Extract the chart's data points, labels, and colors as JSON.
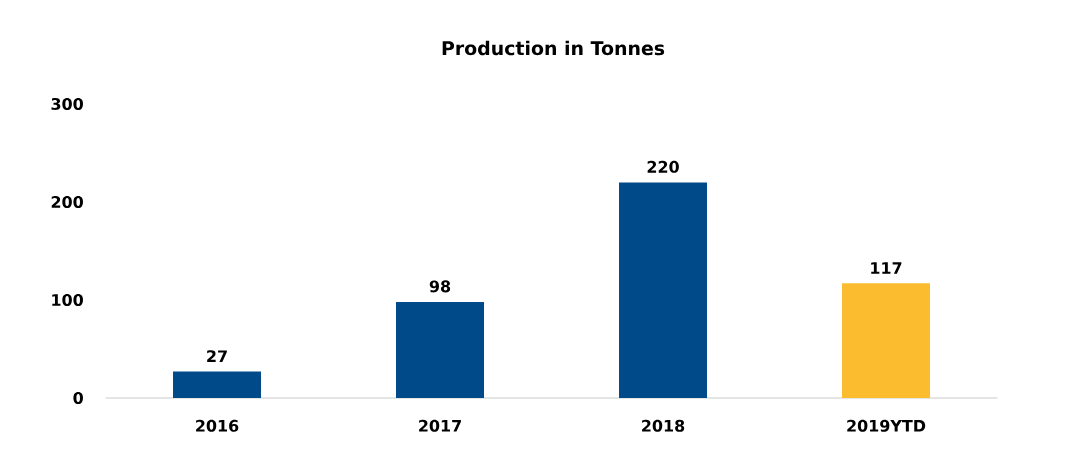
{
  "chart_data": {
    "type": "bar",
    "title": "Production in Tonnes",
    "categories": [
      "2016",
      "2017",
      "2018",
      "2019YTD"
    ],
    "values": [
      27,
      98,
      220,
      117
    ],
    "colors": [
      "#004a8a",
      "#004a8a",
      "#004a8a",
      "#fbbc30"
    ],
    "ylim": [
      0,
      300
    ],
    "yticks": [
      0,
      100,
      200,
      300
    ],
    "data_labels": true
  }
}
